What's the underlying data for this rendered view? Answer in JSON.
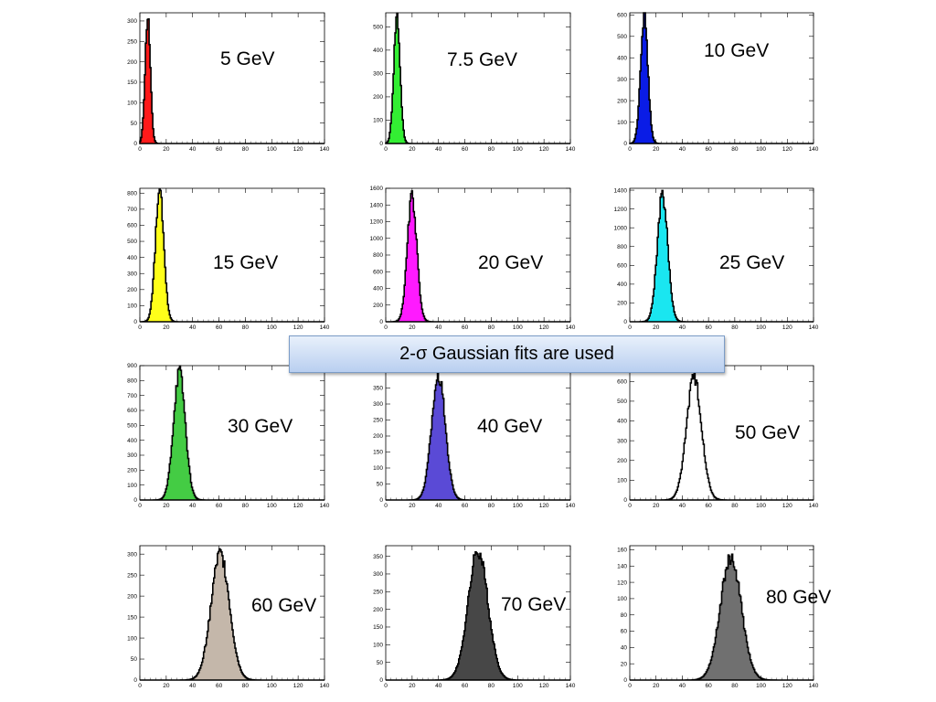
{
  "note": {
    "text": "2-σ Gaussian fits are used"
  },
  "colors": {
    "red": "#ff1a1a",
    "green": "#33ee33",
    "blue": "#0a1ce6",
    "yellow": "#ffff1a",
    "magenta": "#ff1aff",
    "cyan": "#1ae6f0",
    "green2": "#44cc44",
    "slateblue": "#5a4ad6",
    "none": "none",
    "tan": "#c4b7aa",
    "darkgray": "#474747",
    "gray": "#707070"
  },
  "chart_data": [
    {
      "type": "area",
      "label": "5 GeV",
      "mean": 6,
      "sigma": 2,
      "peak": 310,
      "fill": "#ff1a1a",
      "xlim": [
        0,
        140
      ],
      "ylim": [
        0,
        320
      ],
      "xticks": [
        0,
        20,
        40,
        60,
        80,
        100,
        120,
        140
      ],
      "yticks": [
        0,
        50,
        100,
        150,
        200,
        250,
        300
      ]
    },
    {
      "type": "area",
      "label": "7.5 GeV",
      "mean": 8.5,
      "sigma": 2.4,
      "peak": 550,
      "fill": "#33ee33",
      "xlim": [
        0,
        140
      ],
      "ylim": [
        0,
        560
      ],
      "xticks": [
        0,
        20,
        40,
        60,
        80,
        100,
        120,
        140
      ],
      "yticks": [
        0,
        100,
        200,
        300,
        400,
        500
      ]
    },
    {
      "type": "area",
      "label": "10  GeV",
      "mean": 11,
      "sigma": 2.8,
      "peak": 600,
      "fill": "#0a1ce6",
      "xlim": [
        0,
        140
      ],
      "ylim": [
        0,
        610
      ],
      "xticks": [
        0,
        20,
        40,
        60,
        80,
        100,
        120,
        140
      ],
      "yticks": [
        0,
        100,
        200,
        300,
        400,
        500,
        600
      ]
    },
    {
      "type": "area",
      "label": "15  GeV",
      "mean": 15,
      "sigma": 3.2,
      "peak": 810,
      "fill": "#ffff1a",
      "xlim": [
        0,
        140
      ],
      "ylim": [
        0,
        830
      ],
      "xticks": [
        0,
        20,
        40,
        60,
        80,
        100,
        120,
        140
      ],
      "yticks": [
        0,
        100,
        200,
        300,
        400,
        500,
        600,
        700,
        800
      ]
    },
    {
      "type": "area",
      "label": "20  GeV",
      "mean": 20,
      "sigma": 3.6,
      "peak": 1500,
      "fill": "#ff1aff",
      "xlim": [
        0,
        140
      ],
      "ylim": [
        0,
        1600
      ],
      "xticks": [
        0,
        20,
        40,
        60,
        80,
        100,
        120,
        140
      ],
      "yticks": [
        0,
        200,
        400,
        600,
        800,
        1000,
        1200,
        1400,
        1600
      ]
    },
    {
      "type": "area",
      "label": "25  GeV",
      "mean": 25,
      "sigma": 4,
      "peak": 1350,
      "fill": "#1ae6f0",
      "xlim": [
        0,
        140
      ],
      "ylim": [
        0,
        1420
      ],
      "xticks": [
        0,
        20,
        40,
        60,
        80,
        100,
        120,
        140
      ],
      "yticks": [
        0,
        200,
        400,
        600,
        800,
        1000,
        1200,
        1400
      ]
    },
    {
      "type": "area",
      "label": "30  GeV",
      "mean": 30,
      "sigma": 4.5,
      "peak": 860,
      "fill": "#44cc44",
      "xlim": [
        0,
        140
      ],
      "ylim": [
        0,
        900
      ],
      "xticks": [
        0,
        20,
        40,
        60,
        80,
        100,
        120,
        140
      ],
      "yticks": [
        0,
        100,
        200,
        300,
        400,
        500,
        600,
        700,
        800,
        900
      ]
    },
    {
      "type": "area",
      "label": "40  GeV",
      "mean": 40,
      "sigma": 5.2,
      "peak": 390,
      "fill": "#5a4ad6",
      "xlim": [
        0,
        140
      ],
      "ylim": [
        0,
        420
      ],
      "xticks": [
        0,
        20,
        40,
        60,
        80,
        100,
        120,
        140
      ],
      "yticks": [
        0,
        50,
        100,
        150,
        200,
        250,
        300,
        350
      ]
    },
    {
      "type": "area",
      "label": "50  GeV",
      "mean": 49,
      "sigma": 5.8,
      "peak": 620,
      "fill": "none",
      "xlim": [
        0,
        140
      ],
      "ylim": [
        0,
        680
      ],
      "xticks": [
        0,
        20,
        40,
        60,
        80,
        100,
        120,
        140
      ],
      "yticks": [
        0,
        100,
        200,
        300,
        400,
        500,
        600
      ]
    },
    {
      "type": "area",
      "label": "60  GeV",
      "mean": 61,
      "sigma": 7,
      "peak": 300,
      "fill": "#c4b7aa",
      "xlim": [
        0,
        140
      ],
      "ylim": [
        0,
        320
      ],
      "xticks": [
        0,
        20,
        40,
        60,
        80,
        100,
        120,
        140
      ],
      "yticks": [
        0,
        50,
        100,
        150,
        200,
        250,
        300
      ]
    },
    {
      "type": "area",
      "label": "70  GeV",
      "mean": 70,
      "sigma": 7.5,
      "peak": 365,
      "fill": "#474747",
      "xlim": [
        0,
        140
      ],
      "ylim": [
        0,
        380
      ],
      "xticks": [
        0,
        20,
        40,
        60,
        80,
        100,
        120,
        140
      ],
      "yticks": [
        0,
        50,
        100,
        150,
        200,
        250,
        300,
        350
      ]
    },
    {
      "type": "area",
      "label": "80  GeV",
      "mean": 77,
      "sigma": 8,
      "peak": 150,
      "fill": "#707070",
      "xlim": [
        0,
        140
      ],
      "ylim": [
        0,
        165
      ],
      "xticks": [
        0,
        20,
        40,
        60,
        80,
        100,
        120,
        140
      ],
      "yticks": [
        0,
        20,
        40,
        60,
        80,
        100,
        120,
        140,
        160
      ]
    }
  ]
}
